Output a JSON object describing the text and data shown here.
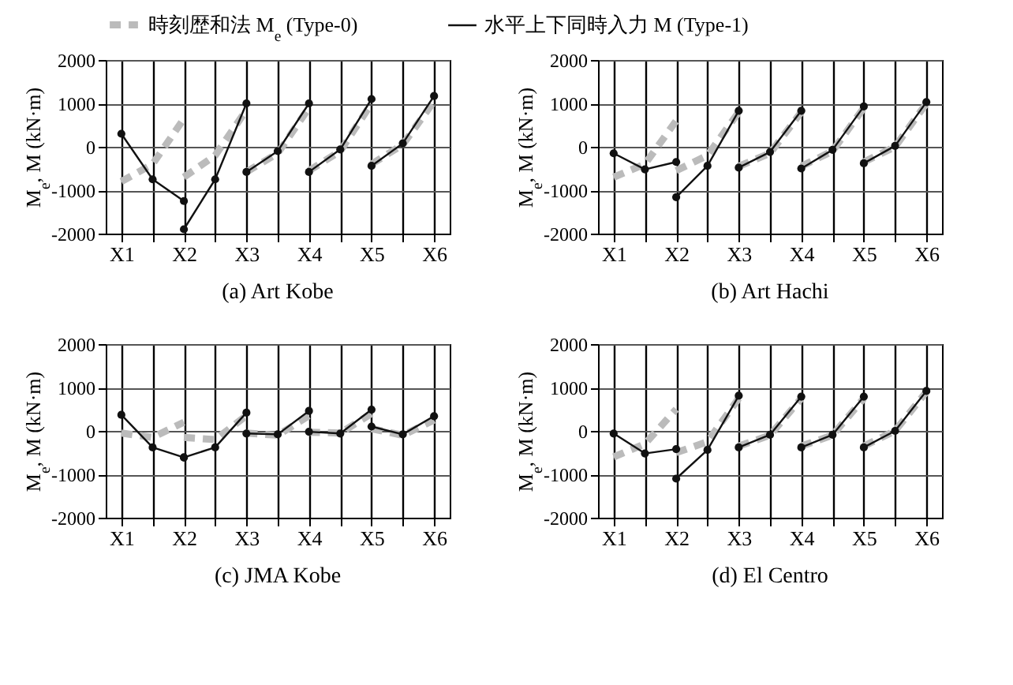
{
  "chart_data": [
    {
      "type": "line",
      "title": "(a)  Art Kobe",
      "ylabel": "M$_{e}$, M (kN·m)",
      "legend": "top",
      "grid": true,
      "marker": "circle",
      "categories": [
        "X1",
        null,
        "X2",
        null,
        "X3",
        null,
        "X4",
        null,
        "X5",
        null,
        "X6"
      ],
      "ylim": [
        -2000,
        2000
      ],
      "yticks": [
        -2000,
        -1000,
        0,
        1000,
        2000
      ],
      "series": [
        {
          "name": "時刻歴和法 M$_{e}$ (Type-0)",
          "color": "#bbbbbb",
          "line_style": "dashed",
          "marker": "none",
          "values": [
            -800,
            -400,
            650,
            null,
            null,
            null,
            null,
            null,
            null,
            null,
            null
          ]
        },
        {
          "color": "#bbbbbb",
          "line_style": "dashed",
          "marker": "none",
          "values": [
            null,
            null,
            -700,
            -200,
            850,
            null,
            null,
            null,
            null,
            null,
            null
          ]
        },
        {
          "color": "#bbbbbb",
          "line_style": "dashed",
          "marker": "none",
          "values": [
            null,
            null,
            null,
            null,
            -580,
            -150,
            900,
            null,
            null,
            null,
            null
          ]
        },
        {
          "color": "#bbbbbb",
          "line_style": "dashed",
          "marker": "none",
          "values": [
            null,
            null,
            null,
            null,
            null,
            null,
            -550,
            -100,
            1000,
            null,
            null
          ]
        },
        {
          "color": "#bbbbbb",
          "line_style": "dashed",
          "marker": "none",
          "values": [
            null,
            null,
            null,
            null,
            null,
            null,
            null,
            null,
            -400,
            50,
            1050
          ]
        },
        {
          "name": "水平上下同時入力 M (Type-1)",
          "color": "#111111",
          "line_style": "solid",
          "values": [
            300,
            -750,
            -1250,
            null,
            null,
            null,
            null,
            null,
            null,
            null,
            null
          ]
        },
        {
          "color": "#111111",
          "line_style": "solid",
          "values": [
            null,
            null,
            -1900,
            -750,
            1000,
            null,
            null,
            null,
            null,
            null,
            null
          ]
        },
        {
          "color": "#111111",
          "line_style": "solid",
          "values": [
            null,
            null,
            null,
            null,
            -580,
            -100,
            1000,
            null,
            null,
            null,
            null
          ]
        },
        {
          "color": "#111111",
          "line_style": "solid",
          "values": [
            null,
            null,
            null,
            null,
            null,
            null,
            -580,
            -60,
            1100,
            null,
            null
          ]
        },
        {
          "color": "#111111",
          "line_style": "solid",
          "values": [
            null,
            null,
            null,
            null,
            null,
            null,
            null,
            null,
            -440,
            80,
            1170
          ]
        }
      ]
    },
    {
      "type": "line",
      "title": "(b)  Art Hachi",
      "ylabel": "M$_{e}$, M (kN·m)",
      "grid": true,
      "marker": "circle",
      "categories": [
        "X1",
        null,
        "X2",
        null,
        "X3",
        null,
        "X4",
        null,
        "X5",
        null,
        "X6"
      ],
      "ylim": [
        -2000,
        2000
      ],
      "yticks": [
        -2000,
        -1000,
        0,
        1000,
        2000
      ],
      "series": [
        {
          "color": "#bbbbbb",
          "line_style": "dashed",
          "marker": "none",
          "values": [
            -700,
            -400,
            600,
            null,
            null,
            null,
            null,
            null,
            null,
            null,
            null
          ]
        },
        {
          "color": "#bbbbbb",
          "line_style": "dashed",
          "marker": "none",
          "values": [
            null,
            null,
            -550,
            -200,
            800,
            null,
            null,
            null,
            null,
            null,
            null
          ]
        },
        {
          "color": "#bbbbbb",
          "line_style": "dashed",
          "marker": "none",
          "values": [
            null,
            null,
            null,
            null,
            -450,
            -150,
            800,
            null,
            null,
            null,
            null
          ]
        },
        {
          "color": "#bbbbbb",
          "line_style": "dashed",
          "marker": "none",
          "values": [
            null,
            null,
            null,
            null,
            null,
            null,
            -450,
            -100,
            900,
            null,
            null
          ]
        },
        {
          "color": "#bbbbbb",
          "line_style": "dashed",
          "marker": "none",
          "values": [
            null,
            null,
            null,
            null,
            null,
            null,
            null,
            null,
            -350,
            0,
            1000
          ]
        },
        {
          "color": "#111111",
          "line_style": "solid",
          "values": [
            -150,
            -520,
            -350,
            null,
            null,
            null,
            null,
            null,
            null,
            null,
            null
          ]
        },
        {
          "color": "#111111",
          "line_style": "solid",
          "values": [
            null,
            null,
            -1160,
            -440,
            830,
            null,
            null,
            null,
            null,
            null,
            null
          ]
        },
        {
          "color": "#111111",
          "line_style": "solid",
          "values": [
            null,
            null,
            null,
            null,
            -480,
            -120,
            830,
            null,
            null,
            null,
            null
          ]
        },
        {
          "color": "#111111",
          "line_style": "solid",
          "values": [
            null,
            null,
            null,
            null,
            null,
            null,
            -500,
            -70,
            930,
            null,
            null
          ]
        },
        {
          "color": "#111111",
          "line_style": "solid",
          "values": [
            null,
            null,
            null,
            null,
            null,
            null,
            null,
            null,
            -380,
            20,
            1030
          ]
        }
      ]
    },
    {
      "type": "line",
      "title": "(c)  JMA Kobe",
      "ylabel": "M$_{e}$, M (kN·m)",
      "grid": true,
      "marker": "circle",
      "categories": [
        "X1",
        null,
        "X2",
        null,
        "X3",
        null,
        "X4",
        null,
        "X5",
        null,
        "X6"
      ],
      "ylim": [
        -2000,
        2000
      ],
      "yticks": [
        -2000,
        -1000,
        0,
        1000,
        2000
      ],
      "series": [
        {
          "color": "#bbbbbb",
          "line_style": "dashed",
          "marker": "none",
          "values": [
            -50,
            -150,
            200,
            null,
            null,
            null,
            null,
            null,
            null,
            null,
            null
          ]
        },
        {
          "color": "#bbbbbb",
          "line_style": "dashed",
          "marker": "none",
          "values": [
            null,
            null,
            -150,
            -200,
            350,
            null,
            null,
            null,
            null,
            null,
            null
          ]
        },
        {
          "color": "#bbbbbb",
          "line_style": "dashed",
          "marker": "none",
          "values": [
            null,
            null,
            null,
            null,
            -50,
            -100,
            350,
            null,
            null,
            null,
            null
          ]
        },
        {
          "color": "#bbbbbb",
          "line_style": "dashed",
          "marker": "none",
          "values": [
            null,
            null,
            null,
            null,
            null,
            null,
            -30,
            -50,
            400,
            null,
            null
          ]
        },
        {
          "color": "#bbbbbb",
          "line_style": "dashed",
          "marker": "none",
          "values": [
            null,
            null,
            null,
            null,
            null,
            null,
            null,
            null,
            50,
            -100,
            250
          ]
        },
        {
          "color": "#111111",
          "line_style": "solid",
          "values": [
            370,
            -380,
            -610,
            null,
            null,
            null,
            null,
            null,
            null,
            null,
            null
          ]
        },
        {
          "color": "#111111",
          "line_style": "solid",
          "values": [
            null,
            null,
            -610,
            -380,
            420,
            null,
            null,
            null,
            null,
            null,
            null
          ]
        },
        {
          "color": "#111111",
          "line_style": "solid",
          "values": [
            null,
            null,
            null,
            null,
            -60,
            -80,
            460,
            null,
            null,
            null,
            null
          ]
        },
        {
          "color": "#111111",
          "line_style": "solid",
          "values": [
            null,
            null,
            null,
            null,
            null,
            null,
            -20,
            -60,
            490,
            null,
            null
          ]
        },
        {
          "color": "#111111",
          "line_style": "solid",
          "values": [
            null,
            null,
            null,
            null,
            null,
            null,
            null,
            null,
            100,
            -80,
            340
          ]
        }
      ]
    },
    {
      "type": "line",
      "title": "(d)  El Centro",
      "ylabel": "M$_{e}$, M (kN·m)",
      "grid": true,
      "marker": "circle",
      "categories": [
        "X1",
        null,
        "X2",
        null,
        "X3",
        null,
        "X4",
        null,
        "X5",
        null,
        "X6"
      ],
      "ylim": [
        -2000,
        2000
      ],
      "yticks": [
        -2000,
        -1000,
        0,
        1000,
        2000
      ],
      "series": [
        {
          "color": "#bbbbbb",
          "line_style": "dashed",
          "marker": "none",
          "values": [
            -600,
            -300,
            500,
            null,
            null,
            null,
            null,
            null,
            null,
            null,
            null
          ]
        },
        {
          "color": "#bbbbbb",
          "line_style": "dashed",
          "marker": "none",
          "values": [
            null,
            null,
            -500,
            -250,
            750,
            null,
            null,
            null,
            null,
            null,
            null
          ]
        },
        {
          "color": "#bbbbbb",
          "line_style": "dashed",
          "marker": "none",
          "values": [
            null,
            null,
            null,
            null,
            -350,
            -100,
            750,
            null,
            null,
            null,
            null
          ]
        },
        {
          "color": "#bbbbbb",
          "line_style": "dashed",
          "marker": "none",
          "values": [
            null,
            null,
            null,
            null,
            null,
            null,
            -350,
            -100,
            750,
            null,
            null
          ]
        },
        {
          "color": "#bbbbbb",
          "line_style": "dashed",
          "marker": "none",
          "values": [
            null,
            null,
            null,
            null,
            null,
            null,
            null,
            null,
            -350,
            0,
            900
          ]
        },
        {
          "color": "#111111",
          "line_style": "solid",
          "values": [
            -60,
            -520,
            -420,
            null,
            null,
            null,
            null,
            null,
            null,
            null,
            null
          ]
        },
        {
          "color": "#111111",
          "line_style": "solid",
          "values": [
            null,
            null,
            -1100,
            -440,
            810,
            null,
            null,
            null,
            null,
            null,
            null
          ]
        },
        {
          "color": "#111111",
          "line_style": "solid",
          "values": [
            null,
            null,
            null,
            null,
            -380,
            -90,
            790,
            null,
            null,
            null,
            null
          ]
        },
        {
          "color": "#111111",
          "line_style": "solid",
          "values": [
            null,
            null,
            null,
            null,
            null,
            null,
            -380,
            -90,
            790,
            null,
            null
          ]
        },
        {
          "color": "#111111",
          "line_style": "solid",
          "values": [
            null,
            null,
            null,
            null,
            null,
            null,
            null,
            null,
            -380,
            0,
            920
          ]
        }
      ]
    }
  ]
}
